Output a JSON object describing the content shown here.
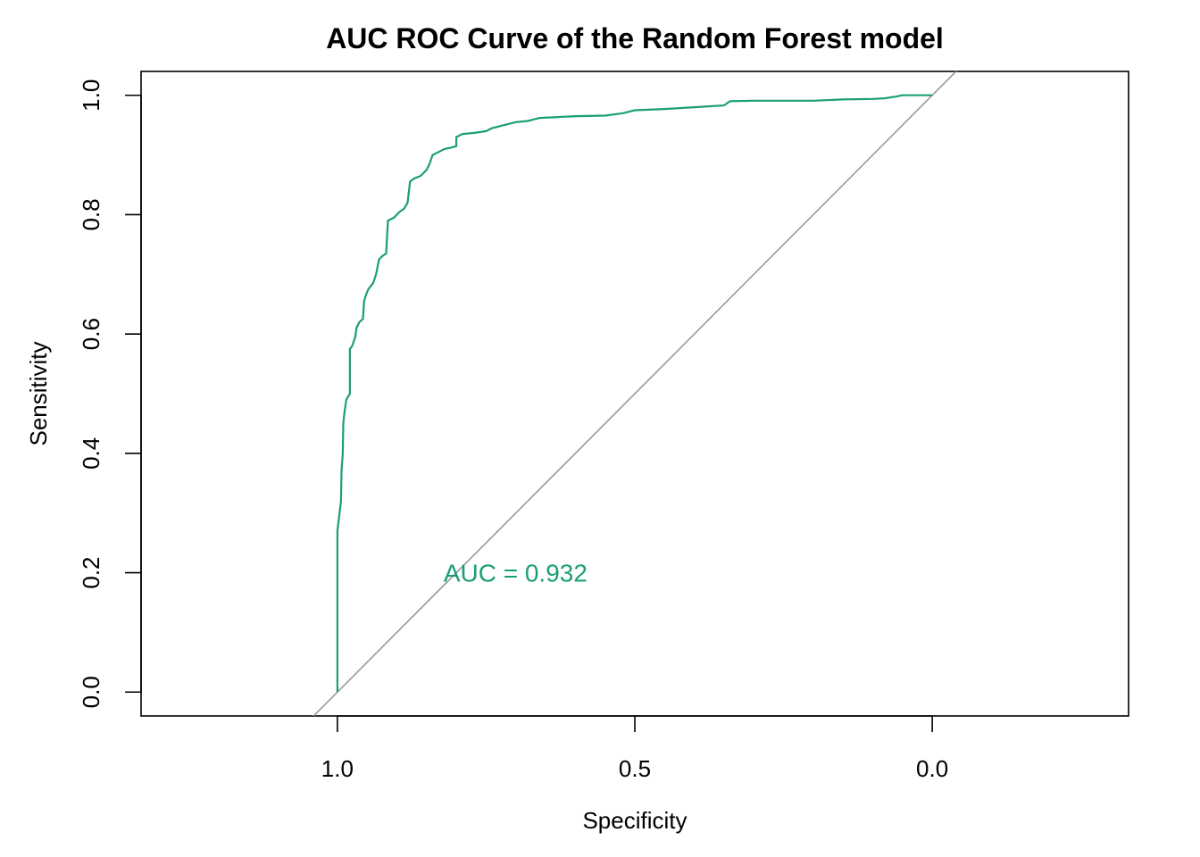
{
  "chart_data": {
    "type": "line",
    "title": "AUC ROC Curve of the Random Forest model",
    "xlabel": "Specificity",
    "ylabel": "Sensitivity",
    "xlim": [
      1.33,
      -0.33
    ],
    "ylim": [
      -0.04,
      1.04
    ],
    "x_reversed": true,
    "x_ticks": [
      {
        "value": 1.0,
        "label": "1.0"
      },
      {
        "value": 0.5,
        "label": "0.5"
      },
      {
        "value": 0.0,
        "label": "0.0"
      }
    ],
    "y_ticks": [
      {
        "value": 0.0,
        "label": "0.0"
      },
      {
        "value": 0.2,
        "label": "0.2"
      },
      {
        "value": 0.4,
        "label": "0.4"
      },
      {
        "value": 0.6,
        "label": "0.6"
      },
      {
        "value": 0.8,
        "label": "0.8"
      },
      {
        "value": 1.0,
        "label": "1.0"
      }
    ],
    "grid": false,
    "annotation": {
      "text": "AUC = 0.932",
      "x": 0.6,
      "y": 0.2,
      "color": "#1b9e77"
    },
    "reference_line": {
      "from": [
        1.0,
        0.0
      ],
      "to": [
        0.0,
        1.0
      ],
      "color": "#999999"
    },
    "series": [
      {
        "color": "#1b9e77",
        "points": [
          [
            1.0,
            0.0
          ],
          [
            1.0,
            0.27
          ],
          [
            0.994,
            0.32
          ],
          [
            0.993,
            0.37
          ],
          [
            0.991,
            0.4
          ],
          [
            0.99,
            0.45
          ],
          [
            0.988,
            0.47
          ],
          [
            0.985,
            0.49
          ],
          [
            0.979,
            0.5
          ],
          [
            0.979,
            0.575
          ],
          [
            0.975,
            0.58
          ],
          [
            0.97,
            0.595
          ],
          [
            0.968,
            0.61
          ],
          [
            0.963,
            0.62
          ],
          [
            0.957,
            0.625
          ],
          [
            0.955,
            0.655
          ],
          [
            0.952,
            0.665
          ],
          [
            0.948,
            0.675
          ],
          [
            0.94,
            0.685
          ],
          [
            0.935,
            0.7
          ],
          [
            0.93,
            0.725
          ],
          [
            0.925,
            0.73
          ],
          [
            0.918,
            0.735
          ],
          [
            0.915,
            0.79
          ],
          [
            0.905,
            0.795
          ],
          [
            0.895,
            0.805
          ],
          [
            0.888,
            0.81
          ],
          [
            0.882,
            0.82
          ],
          [
            0.878,
            0.855
          ],
          [
            0.872,
            0.86
          ],
          [
            0.86,
            0.865
          ],
          [
            0.855,
            0.87
          ],
          [
            0.85,
            0.875
          ],
          [
            0.845,
            0.885
          ],
          [
            0.84,
            0.9
          ],
          [
            0.83,
            0.905
          ],
          [
            0.82,
            0.91
          ],
          [
            0.81,
            0.912
          ],
          [
            0.8,
            0.915
          ],
          [
            0.8,
            0.93
          ],
          [
            0.79,
            0.935
          ],
          [
            0.77,
            0.937
          ],
          [
            0.75,
            0.94
          ],
          [
            0.74,
            0.945
          ],
          [
            0.72,
            0.95
          ],
          [
            0.7,
            0.955
          ],
          [
            0.68,
            0.957
          ],
          [
            0.66,
            0.962
          ],
          [
            0.64,
            0.963
          ],
          [
            0.6,
            0.965
          ],
          [
            0.55,
            0.966
          ],
          [
            0.52,
            0.97
          ],
          [
            0.5,
            0.975
          ],
          [
            0.45,
            0.977
          ],
          [
            0.4,
            0.98
          ],
          [
            0.35,
            0.983
          ],
          [
            0.34,
            0.99
          ],
          [
            0.3,
            0.991
          ],
          [
            0.25,
            0.991
          ],
          [
            0.2,
            0.991
          ],
          [
            0.15,
            0.993
          ],
          [
            0.1,
            0.994
          ],
          [
            0.08,
            0.995
          ],
          [
            0.06,
            0.998
          ],
          [
            0.05,
            1.0
          ],
          [
            0.0,
            1.0
          ]
        ]
      }
    ]
  }
}
